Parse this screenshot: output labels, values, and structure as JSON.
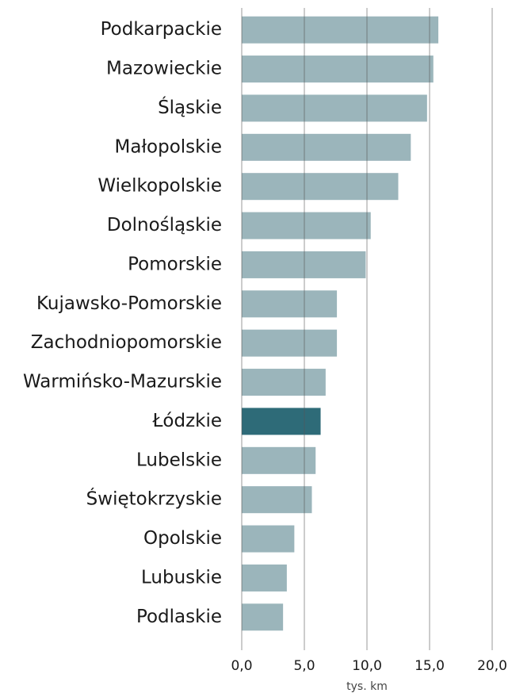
{
  "chart_data": {
    "type": "bar",
    "orientation": "horizontal",
    "categories": [
      "Podkarpackie",
      "Mazowieckie",
      "Śląskie",
      "Małopolskie",
      "Wielkopolskie",
      "Dolnośląskie",
      "Pomorskie",
      "Kujawsko-Pomorskie",
      "Zachodniopomorskie",
      "Warmińsko-Mazurskie",
      "Łódzkie",
      "Lubelskie",
      "Świętokrzyskie",
      "Opolskie",
      "Lubuskie",
      "Podlaskie"
    ],
    "values": [
      15.7,
      15.3,
      14.8,
      13.5,
      12.5,
      10.3,
      9.9,
      7.6,
      7.6,
      6.7,
      6.3,
      5.9,
      5.6,
      4.2,
      3.6,
      3.3
    ],
    "colors": [
      "#9bb5bb",
      "#9bb5bb",
      "#9bb5bb",
      "#9bb5bb",
      "#9bb5bb",
      "#9bb5bb",
      "#9bb5bb",
      "#9bb5bb",
      "#9bb5bb",
      "#9bb5bb",
      "#2e6b78",
      "#9bb5bb",
      "#9bb5bb",
      "#9bb5bb",
      "#9bb5bb",
      "#9bb5bb"
    ],
    "xlabel": "tys. km",
    "xlim": [
      0,
      20
    ],
    "xticks": [
      {
        "value": 0,
        "label": "0,0"
      },
      {
        "value": 5,
        "label": "5,0"
      },
      {
        "value": 10,
        "label": "10,0"
      },
      {
        "value": 15,
        "label": "15,0"
      },
      {
        "value": 20,
        "label": "20,0"
      }
    ],
    "grid": true
  }
}
